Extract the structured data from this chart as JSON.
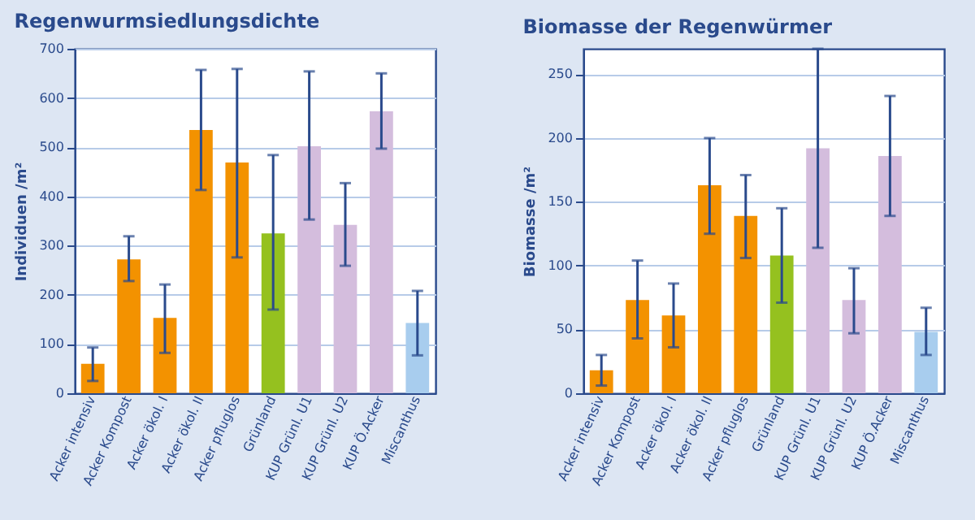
{
  "chart_data": [
    {
      "type": "bar",
      "title": "Regenwurmsiedlungsdichte",
      "ylabel": "Individuen /m²",
      "categories": [
        "Acker intensiv",
        "Acker Kompost",
        "Acker ökol. I",
        "Acker ökol. II",
        "Acker pfluglos",
        "Grünland",
        "KUP Grünl. U1",
        "KUP Grünl. U2",
        "KUP Ö.Acker",
        "Miscanthus"
      ],
      "values": [
        60,
        272,
        153,
        535,
        469,
        325,
        502,
        342,
        573,
        143
      ],
      "errors": [
        [
          25,
          93
        ],
        [
          228,
          319
        ],
        [
          82,
          221
        ],
        [
          413,
          657
        ],
        [
          276,
          659
        ],
        [
          170,
          484
        ],
        [
          353,
          654
        ],
        [
          259,
          427
        ],
        [
          497,
          650
        ],
        [
          77,
          208
        ]
      ],
      "colors": [
        "#f39200",
        "#f39200",
        "#f39200",
        "#f39200",
        "#f39200",
        "#95c11f",
        "#d4bddd",
        "#d4bddd",
        "#d4bddd",
        "#a8cdee"
      ],
      "ylim": [
        0,
        700
      ],
      "yticks": [
        0,
        100,
        200,
        300,
        400,
        500,
        600,
        700
      ],
      "grid": "y"
    },
    {
      "type": "bar",
      "title": "Biomasse der Regenwürmer",
      "ylabel": "Biomasse /m²",
      "categories": [
        "Acker intensiv",
        "Acker Kompost",
        "Acker ökol. I",
        "Acker ökol. II",
        "Acker pfluglos",
        "Grünland",
        "KUP Grünl. U1",
        "KUP Grünl. U2",
        "KUP Ö.Acker",
        "Miscanthus"
      ],
      "values": [
        18,
        73,
        61,
        163,
        139,
        108,
        192,
        73,
        186,
        48
      ],
      "errors": [
        [
          6,
          30
        ],
        [
          43,
          104
        ],
        [
          36,
          86
        ],
        [
          125,
          200
        ],
        [
          106,
          171
        ],
        [
          71,
          145
        ],
        [
          114,
          270
        ],
        [
          47,
          98
        ],
        [
          139,
          233
        ],
        [
          30,
          67
        ]
      ],
      "colors": [
        "#f39200",
        "#f39200",
        "#f39200",
        "#f39200",
        "#f39200",
        "#95c11f",
        "#d4bddd",
        "#d4bddd",
        "#d4bddd",
        "#a8cdee"
      ],
      "ylim": [
        0,
        270
      ],
      "yticks": [
        0,
        50,
        100,
        150,
        200,
        250
      ],
      "grid": "y"
    }
  ]
}
